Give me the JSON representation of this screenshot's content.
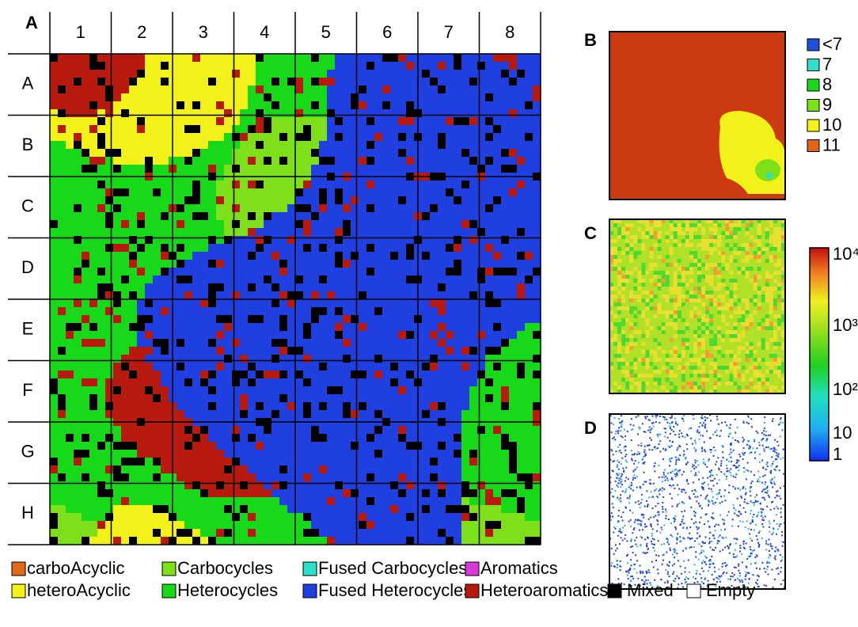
{
  "panels": {
    "a": "A",
    "b": "B",
    "c": "C",
    "d": "D"
  },
  "grid": {
    "columns": [
      "1",
      "2",
      "3",
      "4",
      "5",
      "6",
      "7",
      "8"
    ],
    "rows": [
      "A",
      "B",
      "C",
      "D",
      "E",
      "F",
      "G",
      "H"
    ]
  },
  "panel_b_legend": [
    {
      "label": "<7",
      "color": "#1f4fd8"
    },
    {
      "label": "7",
      "color": "#2fe0c8"
    },
    {
      "label": "8",
      "color": "#19d81f"
    },
    {
      "label": "9",
      "color": "#7ee01a"
    },
    {
      "label": "10",
      "color": "#f2f21a"
    },
    {
      "label": "11",
      "color": "#e0651a"
    }
  ],
  "colorbar": {
    "labels": [
      "10⁴",
      "10³",
      "10²",
      "10",
      "1"
    ]
  },
  "legend": [
    {
      "label": "carboAcyclic",
      "color": "#e06a1a"
    },
    {
      "label": "Carbocycles",
      "color": "#7de01a"
    },
    {
      "label": "Fused Carbocycles",
      "color": "#2de0c8"
    },
    {
      "label": "Aromatics",
      "color": "#d83ad8"
    },
    {
      "label": "heteroAcyclic",
      "color": "#f2f21a"
    },
    {
      "label": "Heterocycles",
      "color": "#18d81a"
    },
    {
      "label": "Fused Heterocycles",
      "color": "#1f3fe0"
    },
    {
      "label": "Heteroaromatics",
      "color": "#b81a10"
    },
    {
      "label": "Mixed",
      "color": "#000000"
    },
    {
      "label": "Empty",
      "color": "#ffffff"
    }
  ]
}
